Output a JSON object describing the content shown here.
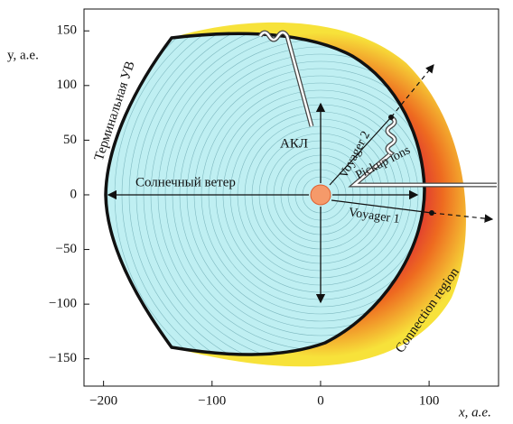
{
  "axes": {
    "xlabel": "x, а.е.",
    "ylabel": "y, а.е.",
    "xlim": [
      -218,
      164
    ],
    "ylim": [
      -175,
      170
    ],
    "xticks": [
      {
        "value": -200,
        "label": "−200"
      },
      {
        "value": -100,
        "label": "−100"
      },
      0,
      100
    ],
    "yticks": [
      150,
      100,
      50,
      0,
      {
        "value": -50,
        "label": "−50"
      },
      {
        "value": -100,
        "label": "−100"
      },
      {
        "value": -150,
        "label": "−150"
      }
    ]
  },
  "labels": {
    "termination_shock": "Терминальная УВ",
    "akl": "АКЛ",
    "solar_wind": "Солнечный ветер",
    "voyager2": "Voyager 2",
    "pickup_ions": "Pickup ions",
    "voyager1": "Voyager 1",
    "connection_region": "Connection region"
  }
}
